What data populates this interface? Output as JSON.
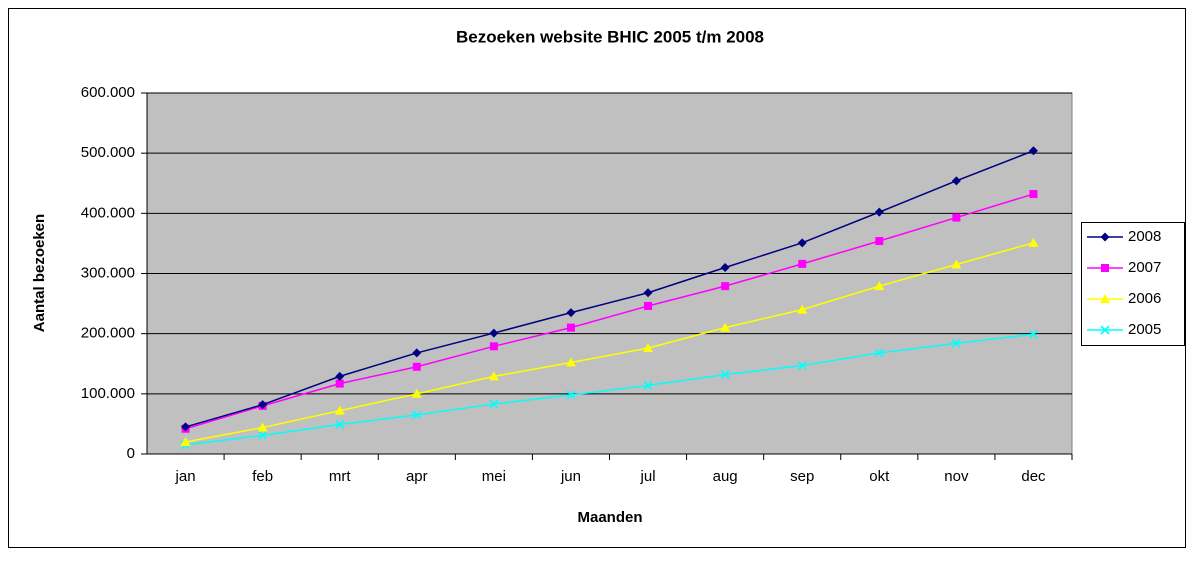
{
  "chart_data": {
    "type": "line",
    "title": "Bezoeken website BHIC 2005 t/m 2008",
    "x_label": "Maanden",
    "y_label": "Aantal bezoeken",
    "categories": [
      "jan",
      "feb",
      "mrt",
      "apr",
      "mei",
      "jun",
      "jul",
      "aug",
      "sep",
      "okt",
      "nov",
      "dec"
    ],
    "series": [
      {
        "name": "2008",
        "color": "#000080",
        "marker": "diamond",
        "values": [
          45000,
          82000,
          129000,
          168000,
          201000,
          235000,
          268000,
          310000,
          351000,
          402000,
          454000,
          504000
        ]
      },
      {
        "name": "2007",
        "color": "#FF00FF",
        "marker": "square",
        "values": [
          42000,
          80000,
          117000,
          145000,
          179000,
          210000,
          246000,
          279000,
          316000,
          354000,
          393000,
          432000
        ]
      },
      {
        "name": "2006",
        "color": "#FFFF00",
        "marker": "triangle",
        "values": [
          20000,
          44000,
          72000,
          100000,
          129000,
          152000,
          176000,
          210000,
          240000,
          279000,
          315000,
          351000
        ]
      },
      {
        "name": "2005",
        "color": "#00FFFF",
        "marker": "x",
        "values": [
          15000,
          31000,
          49000,
          65000,
          83000,
          98000,
          114000,
          132000,
          147000,
          168000,
          184000,
          199000
        ]
      }
    ],
    "ylim": [
      0,
      600000
    ],
    "yticks": [
      0,
      {
        "value": 100000,
        "label": "100.000"
      },
      {
        "value": 200000,
        "label": "200.000"
      },
      {
        "value": 300000,
        "label": "300.000"
      },
      {
        "value": 400000,
        "label": "400.000"
      },
      {
        "value": 500000,
        "label": "500.000"
      },
      {
        "value": 600000,
        "label": "600.000"
      }
    ],
    "grid": true,
    "legend": "right"
  }
}
